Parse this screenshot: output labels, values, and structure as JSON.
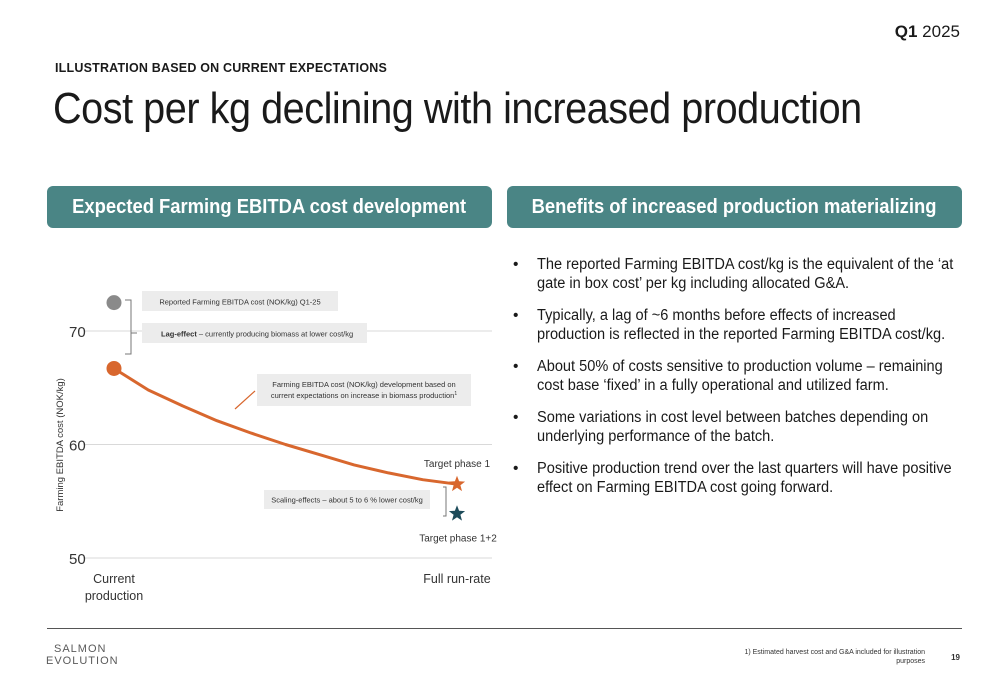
{
  "header": {
    "quarter_bold": "Q1",
    "quarter_year": "2025"
  },
  "eyebrow": "ILLUSTRATION BASED ON CURRENT EXPECTATIONS",
  "title": "Cost per kg declining with increased production",
  "left_panel": {
    "heading": "Expected Farming EBITDA cost development"
  },
  "right_panel": {
    "heading": "Benefits of increased production materializing",
    "bullets": [
      "The reported Farming EBITDA cost/kg is the equivalent of the ‘at gate in box cost’ per kg including allocated G&A.",
      "Typically, a lag of ~6 months before effects of increased production is reflected in the reported Farming EBITDA cost/kg.",
      "About 50% of costs sensitive to production volume – remaining cost base ‘fixed’ in a fully operational and utilized farm.",
      "Some variations in cost level between batches depending on underlying performance of the batch.",
      "Positive production trend over the last quarters will have positive effect on Farming EBITDA cost going forward."
    ]
  },
  "chart_data": {
    "type": "line",
    "ylabel": "Farming EBITDA cost (NOK/kg)",
    "ylim": [
      50,
      70
    ],
    "yticks": [
      50,
      60,
      70
    ],
    "grid": true,
    "x_tick_labels": {
      "start_line1": "Current",
      "start_line2": "production",
      "end": "Full run-rate"
    },
    "series": [
      {
        "name": "Farming EBITDA cost (NOK/kg) development based on current expectations on increase in biomass production",
        "color": "#d8672e",
        "x": [
          0,
          0.1,
          0.2,
          0.3,
          0.4,
          0.5,
          0.6,
          0.7,
          0.8,
          0.9,
          1.0
        ],
        "y": [
          66.7,
          64.8,
          63.4,
          62.1,
          61.0,
          60.0,
          59.1,
          58.2,
          57.5,
          56.9,
          56.5
        ]
      }
    ],
    "points": {
      "reported": {
        "x": 0,
        "y": 72.5,
        "color": "#8a8a8a"
      },
      "current": {
        "x": 0,
        "y": 66.7,
        "color": "#d8672e"
      },
      "target_phase1": {
        "x": 1,
        "y": 56.5,
        "color": "#d8672e",
        "label": "Target phase 1"
      },
      "target_phase12": {
        "x": 1,
        "y": 53.9,
        "color": "#1d4b5a",
        "label": "Target phase 1+2"
      }
    },
    "annotations": {
      "reported": "Reported Farming EBITDA cost (NOK/kg) Q1-25",
      "lag_bold": "Lag-effect",
      "lag_rest": " – currently producing biomass at lower cost/kg",
      "dev_line1": "Farming EBITDA cost (NOK/kg) development based on",
      "dev_line2": "current expectations on increase in biomass production",
      "dev_sup": "1",
      "scaling": "Scaling-effects – about 5 to 6 % lower cost/kg"
    }
  },
  "footer": {
    "logo_line1": "SALMON",
    "logo_line2": "EVOLUTION",
    "footnote": "1) Estimated harvest cost and G&A included for illustration purposes",
    "page": "19"
  }
}
